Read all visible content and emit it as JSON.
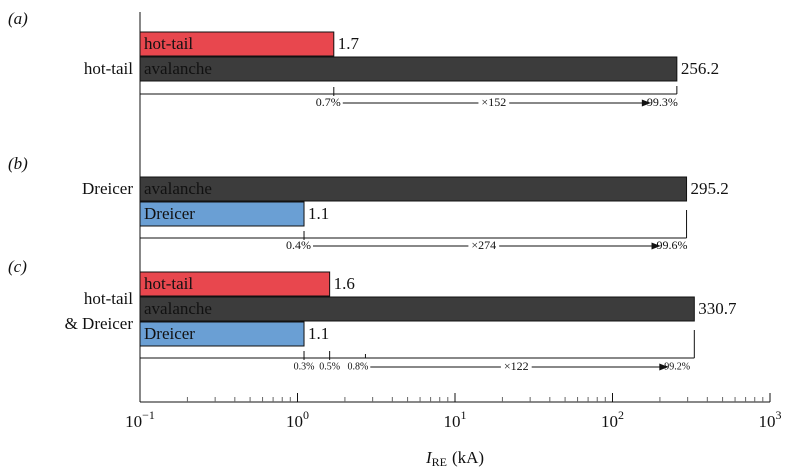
{
  "chart_data": {
    "type": "bar",
    "orientation": "horizontal",
    "xscale": "log",
    "xlabel": {
      "symbol": "I",
      "subscript": "RE",
      "unit": "(kA)"
    },
    "xlim": [
      0.1,
      1000
    ],
    "xticks": [
      {
        "value": 0.1,
        "label": "10",
        "exponent": "−1"
      },
      {
        "value": 1,
        "label": "10",
        "exponent": "0"
      },
      {
        "value": 10,
        "label": "10",
        "exponent": "1"
      },
      {
        "value": 100,
        "label": "10",
        "exponent": "2"
      },
      {
        "value": 1000,
        "label": "10",
        "exponent": "3"
      }
    ],
    "minor_ticks": true,
    "groups": [
      {
        "panel": "(a)",
        "label": [
          "hot-tail"
        ],
        "bars": [
          {
            "name": "hot-tail",
            "value": 1.7,
            "color": "#e8474e"
          },
          {
            "name": "avalanche",
            "value": 256.2,
            "color": "#3c3c3c"
          }
        ],
        "shares": [
          {
            "value": 0.7,
            "label": "0.7%"
          },
          {
            "value": 99.3,
            "label": "99.3%"
          }
        ],
        "ratio": {
          "value": 152,
          "label": "×152"
        }
      },
      {
        "panel": "(b)",
        "label": [
          "Dreicer"
        ],
        "bars": [
          {
            "name": "avalanche",
            "value": 295.2,
            "color": "#3c3c3c"
          },
          {
            "name": "Dreicer",
            "value": 1.1,
            "color": "#6a9fd4"
          }
        ],
        "shares": [
          {
            "value": 0.4,
            "label": "0.4%"
          },
          {
            "value": 99.6,
            "label": "99.6%"
          }
        ],
        "ratio": {
          "value": 274,
          "label": "×274"
        }
      },
      {
        "panel": "(c)",
        "label": [
          "hot-tail",
          "& Dreicer"
        ],
        "bars": [
          {
            "name": "hot-tail",
            "value": 1.6,
            "color": "#e8474e"
          },
          {
            "name": "avalanche",
            "value": 330.7,
            "color": "#3c3c3c"
          },
          {
            "name": "Dreicer",
            "value": 1.1,
            "color": "#6a9fd4"
          }
        ],
        "shares": [
          {
            "value": 0.3,
            "label": "0.3%"
          },
          {
            "value": 0.5,
            "label": "0.5%"
          },
          {
            "value": 0.8,
            "label": "0.8%"
          },
          {
            "value": 99.2,
            "label": "99.2%"
          }
        ],
        "ratio": {
          "value": 122,
          "label": "×122"
        }
      }
    ]
  }
}
